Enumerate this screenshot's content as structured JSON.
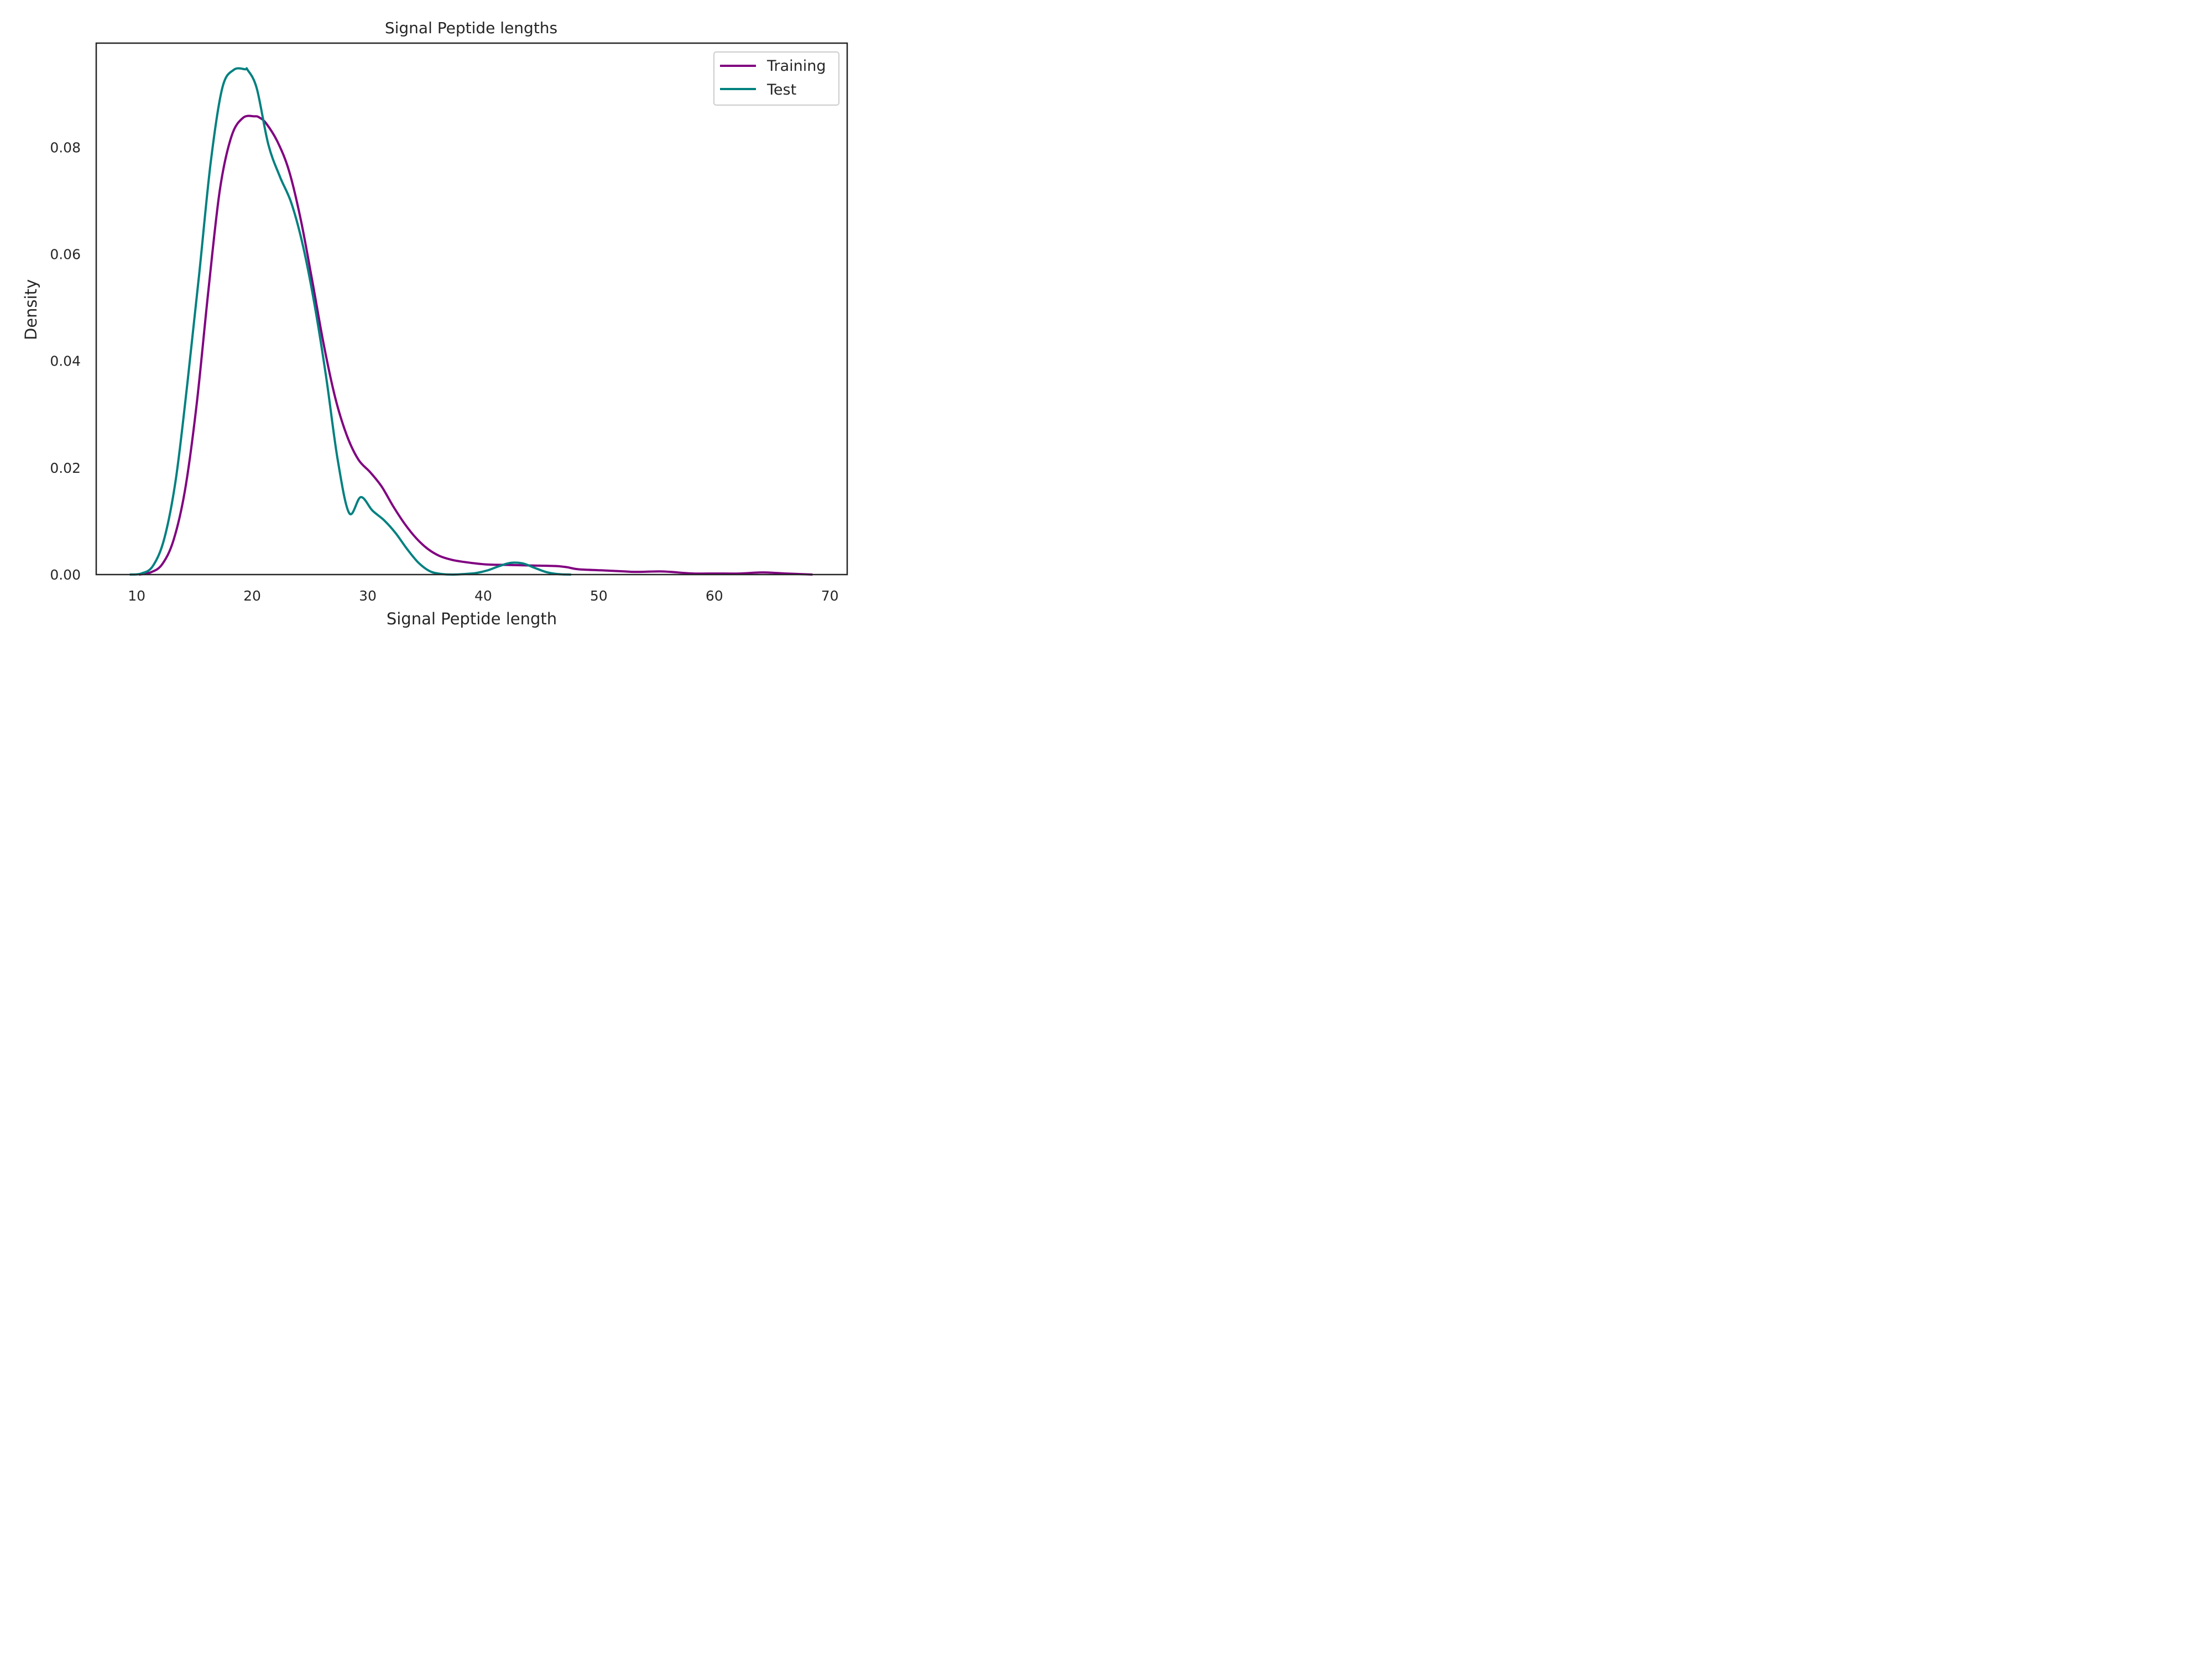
{
  "chart_data": {
    "type": "line",
    "title": "Signal Peptide lengths",
    "xlabel": "Signal Peptide length",
    "ylabel": "Density",
    "xlim": [
      6.5,
      71.5
    ],
    "ylim": [
      0,
      0.0995
    ],
    "xticks": [
      10,
      20,
      30,
      40,
      50,
      60,
      70
    ],
    "yticks": [
      0.0,
      0.02,
      0.04,
      0.06,
      0.08
    ],
    "ytick_labels": [
      "0.00",
      "0.02",
      "0.04",
      "0.06",
      "0.08"
    ],
    "grid": false,
    "legend_position": "top-right",
    "series": [
      {
        "name": "Training",
        "color": "#800080",
        "x": [
          10.2,
          11.2,
          12.2,
          13.2,
          14.2,
          15.2,
          16.2,
          17.2,
          18.2,
          19.2,
          20.2,
          20.6,
          21.2,
          22.2,
          23.2,
          24.2,
          25.2,
          26.2,
          27.2,
          28.2,
          29.2,
          30.2,
          31.2,
          32.2,
          33.2,
          34.2,
          35.2,
          36.2,
          37.2,
          38.2,
          40.2,
          42.2,
          44.2,
          46.2,
          47.2,
          48.2,
          50.2,
          52.2,
          53.2,
          55.2,
          56.2,
          58.2,
          60.2,
          62.2,
          64.2,
          66.2,
          68.5
        ],
        "y": [
          0.0,
          0.0004,
          0.0019,
          0.0065,
          0.016,
          0.032,
          0.053,
          0.072,
          0.082,
          0.0855,
          0.0858,
          0.0856,
          0.0845,
          0.081,
          0.0755,
          0.0665,
          0.055,
          0.043,
          0.033,
          0.026,
          0.0215,
          0.0192,
          0.0165,
          0.0128,
          0.0095,
          0.0068,
          0.0048,
          0.0035,
          0.0028,
          0.0024,
          0.0019,
          0.0018,
          0.0017,
          0.0016,
          0.0014,
          0.001,
          0.0008,
          0.0006,
          0.0005,
          0.0006,
          0.0005,
          0.0002,
          0.0002,
          0.0002,
          0.0004,
          0.0002,
          0.0
        ]
      },
      {
        "name": "Test",
        "color": "#008080",
        "x": [
          9.4,
          10.4,
          11.4,
          12.4,
          13.4,
          14.4,
          15.4,
          16.4,
          17.4,
          18.4,
          19.4,
          19.6,
          20.4,
          21.4,
          22.4,
          23.4,
          24.4,
          25.4,
          26.4,
          27.4,
          28.4,
          29.4,
          30.4,
          31.4,
          32.4,
          33.4,
          34.4,
          35.4,
          36.4,
          37.4,
          38.4,
          39.4,
          40.4,
          41.4,
          42.4,
          43.4,
          44.4,
          45.4,
          46.4,
          47.6
        ],
        "y": [
          0.0,
          0.0002,
          0.0016,
          0.0068,
          0.018,
          0.036,
          0.056,
          0.077,
          0.091,
          0.0945,
          0.0946,
          0.0945,
          0.091,
          0.0805,
          0.0745,
          0.0695,
          0.0615,
          0.0505,
          0.037,
          0.0215,
          0.0115,
          0.0145,
          0.012,
          0.0102,
          0.0078,
          0.0048,
          0.0022,
          0.0006,
          0.0001,
          0.0,
          0.0001,
          0.0003,
          0.0008,
          0.0016,
          0.0022,
          0.0021,
          0.0013,
          0.0005,
          0.0001,
          0.0
        ]
      }
    ]
  }
}
